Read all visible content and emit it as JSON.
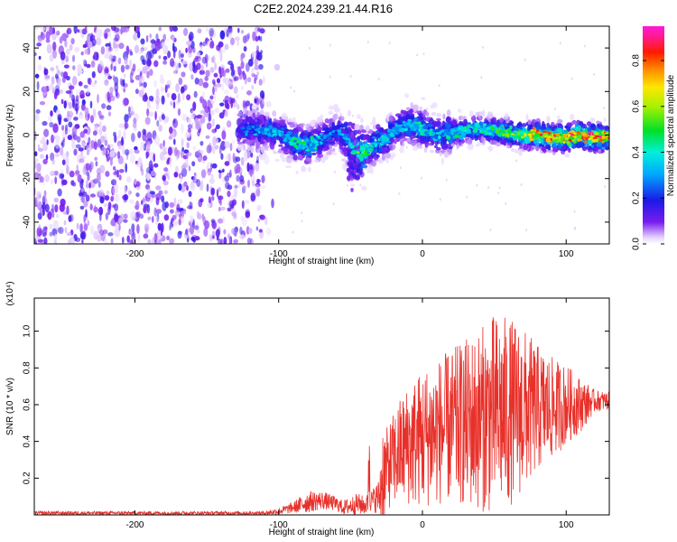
{
  "figure": {
    "title": "C2E2.2024.239.21.44.R16"
  },
  "chart_data": [
    {
      "type": "heatmap",
      "xlabel": "Height of straight line (km)",
      "ylabel": "Frequency (Hz)",
      "xlim": [
        -270,
        130
      ],
      "ylim": [
        -50,
        50
      ],
      "x_ticks": [
        -200,
        -100,
        0,
        100
      ],
      "y_ticks": [
        -40,
        -20,
        0,
        20,
        40
      ],
      "colorbar": {
        "label": "Normalized spectral amplitude",
        "range": [
          0,
          0.95
        ],
        "ticks": [
          "0.0",
          "0.2",
          "0.4",
          "0.6",
          "0.8"
        ],
        "colormap": "rainbow (white-purple-blue-cyan-green-yellow-red-magenta)"
      },
      "ridge": {
        "description": "spectral ridge frequency vs height",
        "x": [
          -125,
          -110,
          -100,
          -90,
          -80,
          -70,
          -60,
          -55,
          -50,
          -45,
          -40,
          -35,
          -30,
          -25,
          -20,
          -10,
          0,
          10,
          20,
          30,
          40,
          50,
          60,
          70,
          80,
          90,
          100,
          110,
          120,
          130
        ],
        "y": [
          3,
          2,
          1,
          -3,
          -5,
          -2,
          2,
          0,
          -4,
          -10,
          -8,
          -5,
          -3,
          -2,
          2,
          5,
          3,
          0,
          1,
          2,
          3,
          2,
          1,
          0,
          0,
          -1,
          -1,
          0,
          -1,
          -1
        ],
        "peak_amplitude": [
          0.3,
          0.35,
          0.38,
          0.45,
          0.5,
          0.35,
          0.3,
          0.35,
          0.4,
          0.55,
          0.55,
          0.4,
          0.45,
          0.4,
          0.35,
          0.4,
          0.45,
          0.4,
          0.45,
          0.45,
          0.45,
          0.5,
          0.6,
          0.65,
          0.8,
          0.85,
          0.9,
          0.85,
          0.9,
          0.9
        ]
      },
      "noise_region": {
        "x_range": [
          -270,
          -110
        ],
        "y_range": [
          -50,
          50
        ],
        "amplitude": [
          0.02,
          0.18
        ]
      }
    },
    {
      "type": "line",
      "xlabel": "Height of straight line (km)",
      "ylabel": "SNR (10 * v/v)",
      "y_multiplier": "(x10⁴)",
      "xlim": [
        -270,
        130
      ],
      "ylim": [
        0,
        1.18
      ],
      "x_ticks": [
        -200,
        -100,
        0,
        100
      ],
      "y_ticks": [
        "0.2",
        "0.4",
        "0.6",
        "0.8",
        "1.0"
      ],
      "color": "#e8302a",
      "series": [
        {
          "x": [
            -270,
            -250,
            -200,
            -150,
            -110,
            -100,
            -90,
            -80,
            -70,
            -60,
            -55,
            -50,
            -45,
            -40,
            -35,
            -30,
            -28,
            -25,
            -20,
            -15,
            -10,
            -5,
            0,
            10,
            20,
            30,
            40,
            50,
            60,
            70,
            80,
            90,
            100,
            110,
            120,
            130
          ],
          "y": [
            0.01,
            0.01,
            0.01,
            0.01,
            0.01,
            0.02,
            0.04,
            0.07,
            0.08,
            0.06,
            0.04,
            0.05,
            0.06,
            0.05,
            0.08,
            0.1,
            0.2,
            0.25,
            0.3,
            0.35,
            0.38,
            0.4,
            0.42,
            0.45,
            0.48,
            0.5,
            0.52,
            0.55,
            0.56,
            0.57,
            0.58,
            0.58,
            0.6,
            0.6,
            0.62,
            0.62
          ],
          "spread": [
            0.01,
            0.01,
            0.01,
            0.01,
            0.01,
            0.02,
            0.03,
            0.06,
            0.05,
            0.04,
            0.04,
            0.05,
            0.06,
            0.05,
            0.06,
            0.1,
            0.35,
            0.22,
            0.26,
            0.3,
            0.33,
            0.36,
            0.38,
            0.4,
            0.42,
            0.46,
            0.5,
            0.55,
            0.52,
            0.45,
            0.35,
            0.28,
            0.22,
            0.15,
            0.06,
            0.05
          ]
        }
      ]
    }
  ]
}
